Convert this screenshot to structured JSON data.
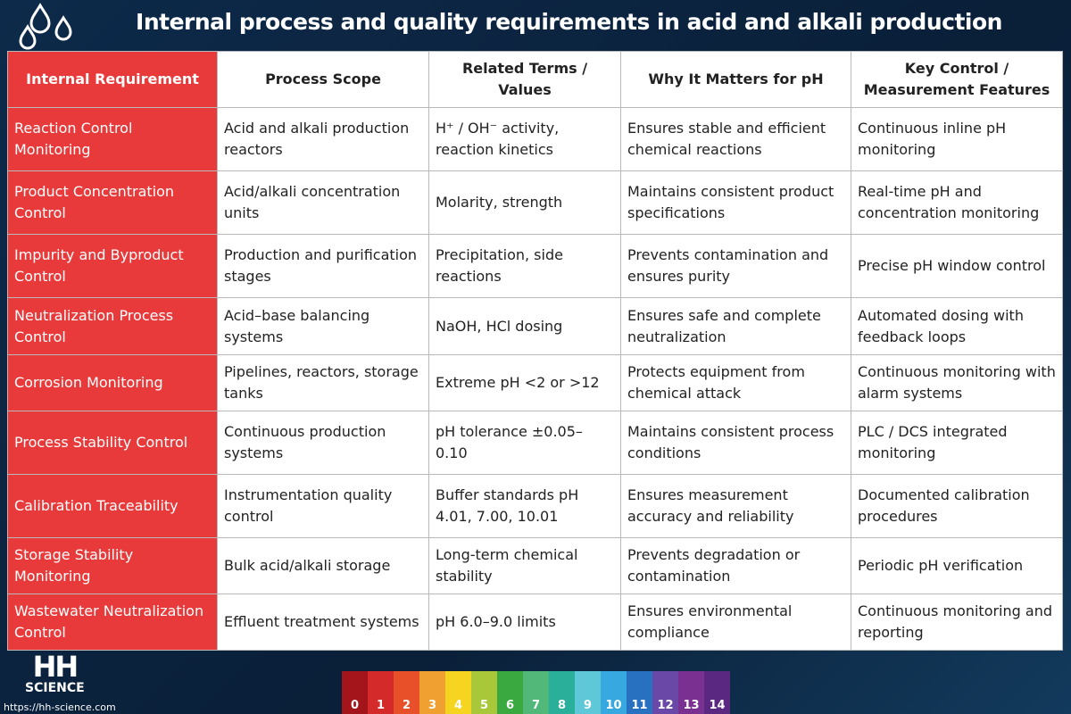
{
  "header": {
    "title": "Internal process and quality requirements in acid and alkali production"
  },
  "table": {
    "columns": [
      "Internal Requirement",
      "Process Scope",
      "Related Terms / Values",
      "Why It Matters for pH",
      "Key Control / Measurement Features"
    ],
    "rows": [
      [
        "Reaction Control Monitoring",
        "Acid and alkali production reactors",
        "H⁺ / OH⁻ activity, reaction kinetics",
        "Ensures stable and efficient chemical reactions",
        "Continuous inline pH monitoring"
      ],
      [
        "Product Concentration Control",
        "Acid/alkali concentration units",
        "Molarity, strength",
        "Maintains consistent product specifications",
        "Real-time pH and concentration monitoring"
      ],
      [
        "Impurity and Byproduct Control",
        "Production and purification stages",
        "Precipitation, side reactions",
        "Prevents contamination and ensures purity",
        "Precise pH window control"
      ],
      [
        "Neutralization Process Control",
        "Acid–base balancing systems",
        "NaOH, HCl dosing",
        "Ensures safe and complete neutralization",
        "Automated dosing with feedback loops"
      ],
      [
        "Corrosion Monitoring",
        "Pipelines, reactors, storage tanks",
        "Extreme pH <2 or >12",
        "Protects equipment from chemical attack",
        "Continuous monitoring with alarm systems"
      ],
      [
        "Process Stability Control",
        "Continuous production systems",
        "pH tolerance ±0.05–0.10",
        "Maintains consistent process conditions",
        "PLC / DCS integrated monitoring"
      ],
      [
        "Calibration Traceability",
        "Instrumentation quality control",
        "Buffer standards pH 4.01, 7.00, 10.01",
        "Ensures measurement accuracy and reliability",
        "Documented calibration procedures"
      ],
      [
        "Storage Stability Monitoring",
        "Bulk acid/alkali storage",
        "Long-term chemical stability",
        "Prevents degradation or contamination",
        "Periodic pH verification"
      ],
      [
        "Wastewater Neutralization Control",
        "Effluent treatment systems",
        "pH 6.0–9.0 limits",
        "Ensures environmental compliance",
        "Continuous monitoring and reporting"
      ]
    ]
  },
  "footer": {
    "logo": "HH",
    "logo_subtitle": "SCIENCE",
    "url": "https://hh-science.com",
    "ph_scale": [
      0,
      1,
      2,
      3,
      4,
      5,
      6,
      7,
      8,
      9,
      10,
      11,
      12,
      13,
      14
    ],
    "ph_colors": [
      "#a3151a",
      "#d42a2a",
      "#e8502a",
      "#f0a030",
      "#f5d520",
      "#a8c83a",
      "#3aaa40",
      "#52b87a",
      "#2ab09a",
      "#5ec8d8",
      "#38a8e0",
      "#2870c0",
      "#6a48a8",
      "#7a3090",
      "#5a2880"
    ]
  }
}
